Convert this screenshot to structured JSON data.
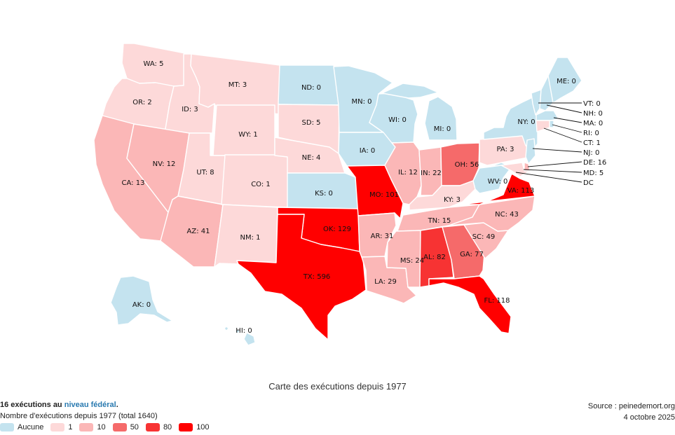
{
  "caption": "Carte des exécutions depuis 1977",
  "federal": {
    "prefix": "16 exécutions au",
    "link": "niveau fédéral",
    "suffix": "."
  },
  "legend": {
    "title": "Nombre d'exécutions depuis 1977 (total 1640)",
    "items": [
      {
        "label": "Aucune",
        "color": "#c4e3ef"
      },
      {
        "label": "1",
        "color": "#fdd9d9"
      },
      {
        "label": "10",
        "color": "#fbb7b7"
      },
      {
        "label": "50",
        "color": "#f56a6a"
      },
      {
        "label": "80",
        "color": "#f73333"
      },
      {
        "label": "100",
        "color": "#ff0000"
      }
    ]
  },
  "source": {
    "line1": "Source : peinedemort.org",
    "line2": "4 octobre 2025"
  },
  "states": [
    {
      "abbr": "WA",
      "label": "WA: 5",
      "value": 5
    },
    {
      "abbr": "OR",
      "label": "OR: 2",
      "value": 2
    },
    {
      "abbr": "CA",
      "label": "CA: 13",
      "value": 13
    },
    {
      "abbr": "ID",
      "label": "ID: 3",
      "value": 3
    },
    {
      "abbr": "NV",
      "label": "NV: 12",
      "value": 12
    },
    {
      "abbr": "MT",
      "label": "MT: 3",
      "value": 3
    },
    {
      "abbr": "WY",
      "label": "WY: 1",
      "value": 1
    },
    {
      "abbr": "UT",
      "label": "UT: 8",
      "value": 8
    },
    {
      "abbr": "AZ",
      "label": "AZ: 41",
      "value": 41
    },
    {
      "abbr": "CO",
      "label": "CO: 1",
      "value": 1
    },
    {
      "abbr": "NM",
      "label": "NM: 1",
      "value": 1
    },
    {
      "abbr": "ND",
      "label": "ND: 0",
      "value": 0
    },
    {
      "abbr": "SD",
      "label": "SD: 5",
      "value": 5
    },
    {
      "abbr": "NE",
      "label": "NE: 4",
      "value": 4
    },
    {
      "abbr": "KS",
      "label": "KS: 0",
      "value": 0
    },
    {
      "abbr": "OK",
      "label": "OK: 129",
      "value": 129
    },
    {
      "abbr": "TX",
      "label": "TX: 596",
      "value": 596
    },
    {
      "abbr": "MN",
      "label": "MN: 0",
      "value": 0
    },
    {
      "abbr": "IA",
      "label": "IA: 0",
      "value": 0
    },
    {
      "abbr": "MO",
      "label": "MO: 101",
      "value": 101
    },
    {
      "abbr": "AR",
      "label": "AR: 31",
      "value": 31
    },
    {
      "abbr": "LA",
      "label": "LA: 29",
      "value": 29
    },
    {
      "abbr": "WI",
      "label": "WI: 0",
      "value": 0
    },
    {
      "abbr": "IL",
      "label": "IL: 12",
      "value": 12
    },
    {
      "abbr": "MI",
      "label": "MI: 0",
      "value": 0
    },
    {
      "abbr": "IN",
      "label": "IN: 22",
      "value": 22
    },
    {
      "abbr": "OH",
      "label": "OH: 56",
      "value": 56
    },
    {
      "abbr": "KY",
      "label": "KY: 3",
      "value": 3
    },
    {
      "abbr": "TN",
      "label": "TN: 15",
      "value": 15
    },
    {
      "abbr": "MS",
      "label": "MS: 24",
      "value": 24
    },
    {
      "abbr": "AL",
      "label": "AL: 82",
      "value": 82
    },
    {
      "abbr": "GA",
      "label": "GA: 77",
      "value": 77
    },
    {
      "abbr": "FL",
      "label": "FL: 118",
      "value": 118
    },
    {
      "abbr": "SC",
      "label": "SC: 49",
      "value": 49
    },
    {
      "abbr": "NC",
      "label": "NC: 43",
      "value": 43
    },
    {
      "abbr": "VA",
      "label": "VA: 113",
      "value": 113
    },
    {
      "abbr": "WV",
      "label": "WV: 0",
      "value": 0
    },
    {
      "abbr": "PA",
      "label": "PA: 3",
      "value": 3
    },
    {
      "abbr": "NY",
      "label": "NY: 0",
      "value": 0
    },
    {
      "abbr": "ME",
      "label": "ME: 0",
      "value": 0
    },
    {
      "abbr": "AK",
      "label": "AK: 0",
      "value": 0
    },
    {
      "abbr": "HI",
      "label": "HI: 0",
      "value": 0
    },
    {
      "abbr": "VT",
      "label": "VT: 0",
      "value": 0
    },
    {
      "abbr": "NH",
      "label": "NH: 0",
      "value": 0
    },
    {
      "abbr": "MA",
      "label": "MA: 0",
      "value": 0
    },
    {
      "abbr": "RI",
      "label": "RI: 0",
      "value": 0
    },
    {
      "abbr": "CT",
      "label": "CT: 1",
      "value": 1
    },
    {
      "abbr": "NJ",
      "label": "NJ: 0",
      "value": 0
    },
    {
      "abbr": "DE",
      "label": "DE: 16",
      "value": 16
    },
    {
      "abbr": "MD",
      "label": "MD: 5",
      "value": 5
    },
    {
      "abbr": "DC",
      "label": "DC",
      "value": 0
    }
  ]
}
